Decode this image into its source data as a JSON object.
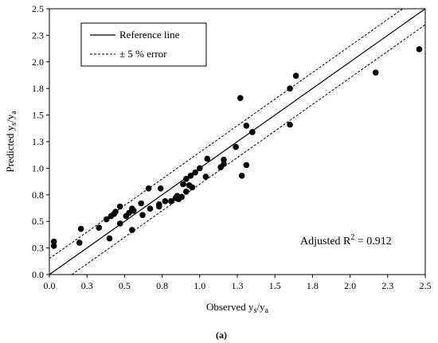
{
  "chart_data": {
    "type": "scatter",
    "xlabel": "Observed y",
    "xlabel_sub1": "s",
    "xlabel_mid": "/y",
    "xlabel_sub2": "a",
    "ylabel": "Predicted y",
    "ylabel_sub1": "s",
    "ylabel_mid": "/y",
    "ylabel_sub2": "a",
    "xlim": [
      0.0,
      2.5
    ],
    "ylim": [
      0.0,
      2.5
    ],
    "xticks": [
      "0.0",
      "0.3",
      "0.5",
      "0.8",
      "1.0",
      "1.3",
      "1.5",
      "1.8",
      "2.0",
      "2.3",
      "2.5"
    ],
    "yticks": [
      "0.0",
      "0.3",
      "0.5",
      "0.8",
      "1.0",
      "1.3",
      "1.5",
      "1.8",
      "2.0",
      "2.3",
      "2.5"
    ],
    "grid": false,
    "legend": {
      "placement": "top-left",
      "entries": [
        {
          "label": "Reference line",
          "style": "solid"
        },
        {
          "label": "± 5 % error",
          "style": "dashed"
        }
      ]
    },
    "annotation": {
      "text_prefix": "Adjusted R",
      "superscript": "2",
      "text_suffix": " = 0.912"
    },
    "caption": "(a)",
    "reference_line": {
      "slope": 1,
      "intercept": 0
    },
    "error_bands": [
      {
        "offset": 0.15
      },
      {
        "offset": -0.15
      }
    ],
    "points": [
      {
        "x": 0.03,
        "y": 0.31
      },
      {
        "x": 0.03,
        "y": 0.27
      },
      {
        "x": 0.2,
        "y": 0.3
      },
      {
        "x": 0.21,
        "y": 0.43
      },
      {
        "x": 0.33,
        "y": 0.44
      },
      {
        "x": 0.38,
        "y": 0.52
      },
      {
        "x": 0.4,
        "y": 0.34
      },
      {
        "x": 0.41,
        "y": 0.55
      },
      {
        "x": 0.43,
        "y": 0.57
      },
      {
        "x": 0.44,
        "y": 0.59
      },
      {
        "x": 0.47,
        "y": 0.64
      },
      {
        "x": 0.47,
        "y": 0.48
      },
      {
        "x": 0.51,
        "y": 0.55
      },
      {
        "x": 0.53,
        "y": 0.58
      },
      {
        "x": 0.55,
        "y": 0.62
      },
      {
        "x": 0.55,
        "y": 0.42
      },
      {
        "x": 0.56,
        "y": 0.6
      },
      {
        "x": 0.61,
        "y": 0.67
      },
      {
        "x": 0.62,
        "y": 0.56
      },
      {
        "x": 0.66,
        "y": 0.81
      },
      {
        "x": 0.67,
        "y": 0.62
      },
      {
        "x": 0.73,
        "y": 0.64
      },
      {
        "x": 0.73,
        "y": 0.66
      },
      {
        "x": 0.74,
        "y": 0.81
      },
      {
        "x": 0.77,
        "y": 0.69
      },
      {
        "x": 0.81,
        "y": 0.69
      },
      {
        "x": 0.84,
        "y": 0.72
      },
      {
        "x": 0.85,
        "y": 0.74
      },
      {
        "x": 0.86,
        "y": 0.71
      },
      {
        "x": 0.88,
        "y": 0.73
      },
      {
        "x": 0.89,
        "y": 0.85
      },
      {
        "x": 0.91,
        "y": 0.78
      },
      {
        "x": 0.91,
        "y": 0.9
      },
      {
        "x": 0.93,
        "y": 0.84
      },
      {
        "x": 0.94,
        "y": 0.93
      },
      {
        "x": 0.95,
        "y": 0.82
      },
      {
        "x": 0.97,
        "y": 0.96
      },
      {
        "x": 1.0,
        "y": 1.0
      },
      {
        "x": 1.04,
        "y": 0.92
      },
      {
        "x": 1.05,
        "y": 1.09
      },
      {
        "x": 1.14,
        "y": 1.01
      },
      {
        "x": 1.16,
        "y": 1.04
      },
      {
        "x": 1.16,
        "y": 1.08
      },
      {
        "x": 1.24,
        "y": 1.2
      },
      {
        "x": 1.27,
        "y": 1.66
      },
      {
        "x": 1.28,
        "y": 0.93
      },
      {
        "x": 1.31,
        "y": 1.4
      },
      {
        "x": 1.31,
        "y": 1.03
      },
      {
        "x": 1.35,
        "y": 1.34
      },
      {
        "x": 1.6,
        "y": 1.75
      },
      {
        "x": 1.6,
        "y": 1.41
      },
      {
        "x": 1.64,
        "y": 1.87
      },
      {
        "x": 2.17,
        "y": 1.9
      },
      {
        "x": 2.46,
        "y": 2.12
      }
    ]
  }
}
